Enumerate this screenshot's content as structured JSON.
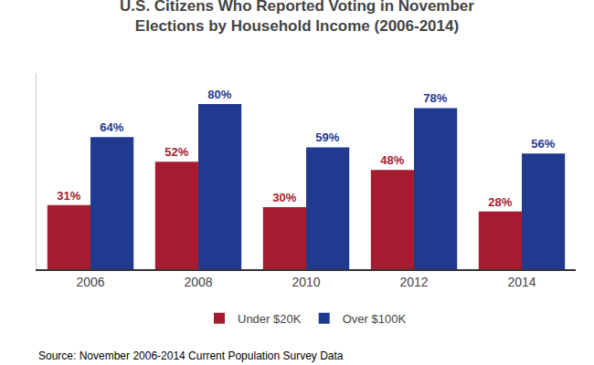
{
  "chart_data": {
    "type": "bar",
    "title": "U.S. Citizens Who Reported Voting in November\nElections by Household Income (2006-2014)",
    "categories": [
      "2006",
      "2008",
      "2010",
      "2012",
      "2014"
    ],
    "series": [
      {
        "name": "Under $20K",
        "color": "#a51c30",
        "values": [
          31,
          52,
          30,
          48,
          28
        ],
        "value_labels": [
          "31%",
          "52%",
          "30%",
          "48%",
          "28%"
        ]
      },
      {
        "name": "Over $100K",
        "color": "#1f3a8f",
        "values": [
          64,
          80,
          59,
          78,
          56
        ],
        "value_labels": [
          "64%",
          "80%",
          "59%",
          "78%",
          "56%"
        ]
      }
    ],
    "ylim": [
      0,
      95
    ],
    "data_labels": true,
    "tick_labels": "x",
    "grid": false,
    "legend": "bottom",
    "annotations": [
      "Source: November 2006-2014 Current Population Survey Data"
    ]
  }
}
